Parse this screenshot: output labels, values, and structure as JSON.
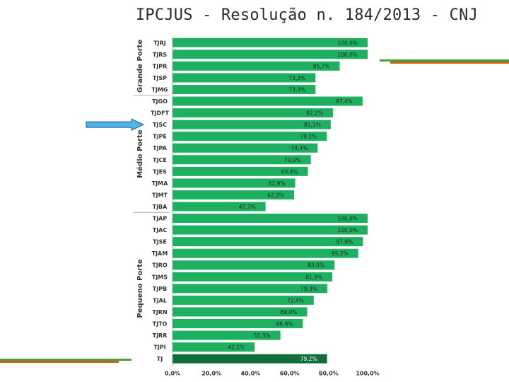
{
  "title": "IPCJUS - Resolução n. 184/2013 - CNJ",
  "colors": {
    "bar": "#1db061",
    "total_bar": "#0f6e3a",
    "arrow": "#4fb4e8",
    "accent_orange": "#c8641c",
    "accent_green": "#4aa13a"
  },
  "chart_data": {
    "type": "bar",
    "orientation": "horizontal",
    "xlim": [
      0,
      100
    ],
    "ticks": [
      "0,0%",
      "20,0%",
      "40,0%",
      "60,0%",
      "80,0%",
      "100,0%"
    ],
    "groups": [
      {
        "label": "Grande Porte",
        "categories": [
          "TJRJ",
          "TJRS",
          "TJPR",
          "TJSP",
          "TJMG"
        ]
      },
      {
        "label": "Médio Porte",
        "categories": [
          "TJGO",
          "TJDFT",
          "TJSC",
          "TJPE",
          "TJPA",
          "TJCE",
          "TJES",
          "TJMA",
          "TJMT",
          "TJBA"
        ]
      },
      {
        "label": "Pequeno Porte",
        "categories": [
          "TJAP",
          "TJAC",
          "TJSE",
          "TJAM",
          "TJRO",
          "TJMS",
          "TJPB",
          "TJAL",
          "TJRN",
          "TJTO",
          "TJRR",
          "TJPI",
          "TJ"
        ]
      }
    ],
    "categories": [
      "TJRJ",
      "TJRS",
      "TJPR",
      "TJSP",
      "TJMG",
      "TJGO",
      "TJDFT",
      "TJSC",
      "TJPE",
      "TJPA",
      "TJCE",
      "TJES",
      "TJMA",
      "TJMT",
      "TJBA",
      "TJAP",
      "TJAC",
      "TJSE",
      "TJAM",
      "TJRO",
      "TJMS",
      "TJPB",
      "TJAL",
      "TJRN",
      "TJTO",
      "TJRR",
      "TJPI",
      "TJ"
    ],
    "values": [
      100.0,
      100.0,
      85.7,
      73.3,
      73.3,
      97.4,
      82.2,
      81.1,
      79.1,
      74.4,
      70.9,
      69.4,
      62.9,
      62.3,
      47.7,
      100.0,
      100.0,
      97.6,
      95.2,
      83.0,
      81.9,
      79.3,
      72.4,
      69.0,
      66.8,
      55.3,
      42.1,
      79.2
    ],
    "value_labels": [
      "100,0%",
      "100,0%",
      "85,7%",
      "73,3%",
      "73,3%",
      "97,4%",
      "82,2%",
      "81,1%",
      "79,1%",
      "74,4%",
      "70,9%",
      "69,4%",
      "62,9%",
      "62,3%",
      "47,7%",
      "100,0%",
      "100,0%",
      "97,6%",
      "95,2%",
      "83,0%",
      "81,9%",
      "79,3%",
      "72,4%",
      "69,0%",
      "66,8%",
      "55,3%",
      "42,1%",
      "79,2%"
    ],
    "highlight": "TJSC",
    "total_category": "TJ"
  }
}
